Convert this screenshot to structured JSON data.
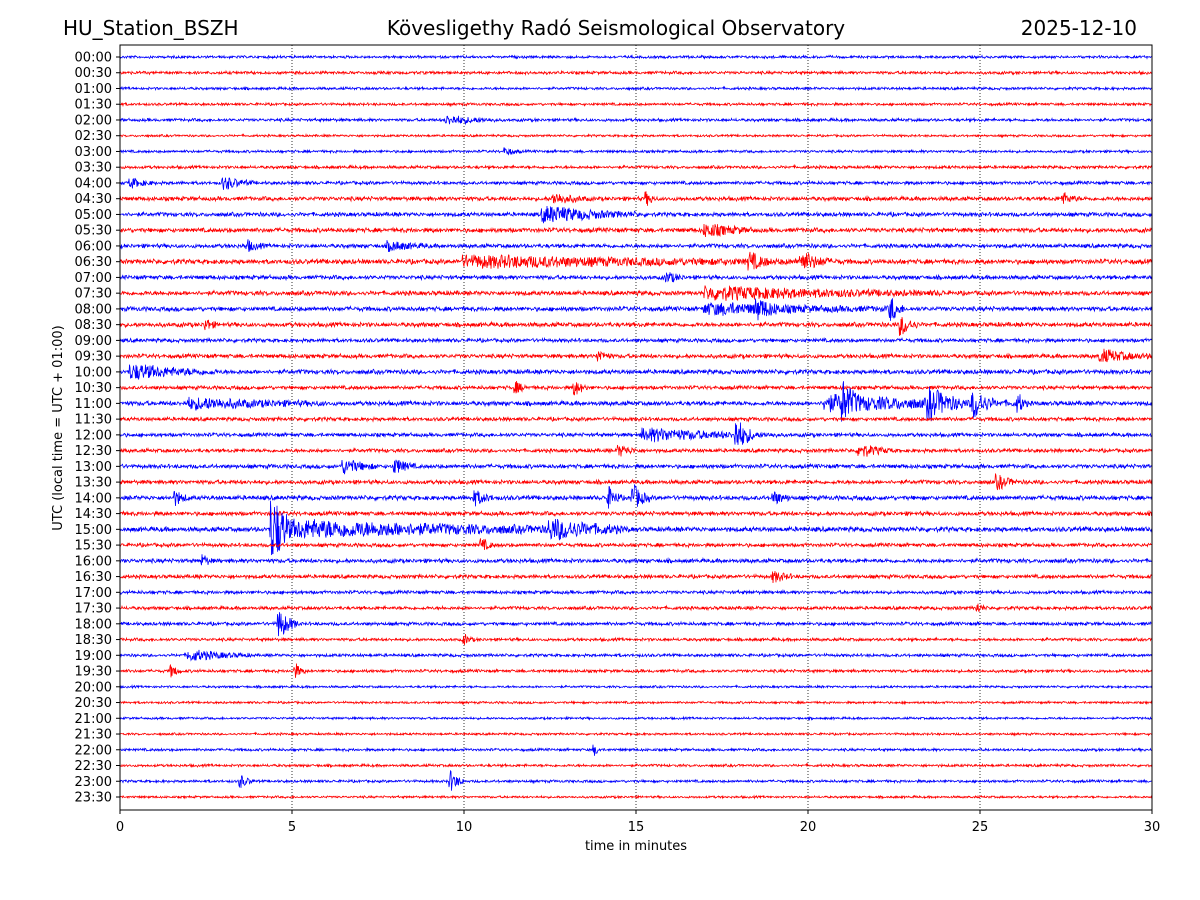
{
  "header": {
    "station": "HU_Station_BSZH",
    "observatory": "Kövesligethy Radó Seismological Observatory",
    "date": "2025-12-10"
  },
  "chart_data": {
    "type": "line",
    "subtype": "helicorder",
    "xlabel": "time in minutes",
    "ylabel": "UTC (local time = UTC + 01:00)",
    "xlim": [
      0,
      30
    ],
    "xticks": [
      "0",
      "5",
      "10",
      "15",
      "20",
      "25",
      "30"
    ],
    "grid": "vertical dotted at x ticks",
    "colors": [
      "#0000ff",
      "#ff0000"
    ],
    "rows": [
      "00:00",
      "00:30",
      "01:00",
      "01:30",
      "02:00",
      "02:30",
      "03:00",
      "03:30",
      "04:00",
      "04:30",
      "05:00",
      "05:30",
      "06:00",
      "06:30",
      "07:00",
      "07:30",
      "08:00",
      "08:30",
      "09:00",
      "09:30",
      "10:00",
      "10:30",
      "11:00",
      "11:30",
      "12:00",
      "12:30",
      "13:00",
      "13:30",
      "14:00",
      "14:30",
      "15:00",
      "15:30",
      "16:00",
      "16:30",
      "17:00",
      "17:30",
      "18:00",
      "18:30",
      "19:00",
      "19:30",
      "20:00",
      "20:30",
      "21:00",
      "21:30",
      "22:00",
      "22:30",
      "23:00",
      "23:30"
    ],
    "noise_level": [
      0.07,
      0.08,
      0.07,
      0.07,
      0.08,
      0.06,
      0.07,
      0.08,
      0.09,
      0.11,
      0.11,
      0.12,
      0.11,
      0.13,
      0.11,
      0.12,
      0.12,
      0.12,
      0.1,
      0.11,
      0.12,
      0.1,
      0.12,
      0.1,
      0.1,
      0.1,
      0.11,
      0.11,
      0.12,
      0.11,
      0.13,
      0.1,
      0.11,
      0.1,
      0.09,
      0.09,
      0.09,
      0.08,
      0.08,
      0.08,
      0.06,
      0.06,
      0.06,
      0.06,
      0.07,
      0.07,
      0.07,
      0.06
    ],
    "events": [
      {
        "row": "02:00",
        "t": 9.5,
        "amp": 0.25,
        "dur": 1.5
      },
      {
        "row": "03:00",
        "t": 11.2,
        "amp": 0.2,
        "dur": 0.5
      },
      {
        "row": "04:00",
        "t": 0.3,
        "amp": 0.25,
        "dur": 0.7
      },
      {
        "row": "04:00",
        "t": 3.0,
        "amp": 0.35,
        "dur": 0.9
      },
      {
        "row": "04:30",
        "t": 12.6,
        "amp": 0.3,
        "dur": 1.0
      },
      {
        "row": "04:30",
        "t": 15.3,
        "amp": 0.35,
        "dur": 0.3
      },
      {
        "row": "04:30",
        "t": 27.4,
        "amp": 0.3,
        "dur": 0.5
      },
      {
        "row": "05:00",
        "t": 12.3,
        "amp": 0.45,
        "dur": 2.8
      },
      {
        "row": "05:30",
        "t": 17.0,
        "amp": 0.35,
        "dur": 1.5
      },
      {
        "row": "06:00",
        "t": 3.7,
        "amp": 0.3,
        "dur": 0.5
      },
      {
        "row": "06:00",
        "t": 7.8,
        "amp": 0.25,
        "dur": 1.2
      },
      {
        "row": "06:30",
        "t": 10.0,
        "amp": 0.3,
        "dur": 11
      },
      {
        "row": "06:30",
        "t": 18.3,
        "amp": 0.45,
        "dur": 0.6
      },
      {
        "row": "06:30",
        "t": 19.8,
        "amp": 0.5,
        "dur": 0.8
      },
      {
        "row": "07:00",
        "t": 15.9,
        "amp": 0.3,
        "dur": 0.5
      },
      {
        "row": "07:30",
        "t": 17.0,
        "amp": 0.35,
        "dur": 7
      },
      {
        "row": "08:00",
        "t": 17.0,
        "amp": 0.3,
        "dur": 5.5
      },
      {
        "row": "08:00",
        "t": 18.5,
        "amp": 0.45,
        "dur": 0.7
      },
      {
        "row": "08:00",
        "t": 22.4,
        "amp": 0.7,
        "dur": 0.4
      },
      {
        "row": "08:30",
        "t": 2.5,
        "amp": 0.35,
        "dur": 0.3
      },
      {
        "row": "08:30",
        "t": 22.7,
        "amp": 0.6,
        "dur": 0.5
      },
      {
        "row": "09:30",
        "t": 13.9,
        "amp": 0.35,
        "dur": 0.4
      },
      {
        "row": "09:30",
        "t": 28.5,
        "amp": 0.35,
        "dur": 1.5
      },
      {
        "row": "10:00",
        "t": 0.3,
        "amp": 0.4,
        "dur": 2.5
      },
      {
        "row": "10:30",
        "t": 11.5,
        "amp": 0.3,
        "dur": 0.4
      },
      {
        "row": "10:30",
        "t": 13.2,
        "amp": 0.45,
        "dur": 0.4
      },
      {
        "row": "11:00",
        "t": 2.0,
        "amp": 0.3,
        "dur": 4
      },
      {
        "row": "11:00",
        "t": 20.5,
        "amp": 0.45,
        "dur": 5.8
      },
      {
        "row": "11:00",
        "t": 21.0,
        "amp": 0.9,
        "dur": 0.5
      },
      {
        "row": "11:00",
        "t": 23.5,
        "amp": 0.8,
        "dur": 1.0
      },
      {
        "row": "11:00",
        "t": 24.8,
        "amp": 0.8,
        "dur": 0.6
      },
      {
        "row": "11:00",
        "t": 26.1,
        "amp": 0.5,
        "dur": 0.3
      },
      {
        "row": "12:00",
        "t": 15.2,
        "amp": 0.35,
        "dur": 4
      },
      {
        "row": "12:00",
        "t": 17.9,
        "amp": 0.85,
        "dur": 0.6
      },
      {
        "row": "12:30",
        "t": 14.5,
        "amp": 0.3,
        "dur": 0.6
      },
      {
        "row": "12:30",
        "t": 21.5,
        "amp": 0.35,
        "dur": 1.0
      },
      {
        "row": "13:00",
        "t": 6.5,
        "amp": 0.4,
        "dur": 1.0
      },
      {
        "row": "13:00",
        "t": 8.0,
        "amp": 0.4,
        "dur": 0.6
      },
      {
        "row": "13:30",
        "t": 25.5,
        "amp": 0.4,
        "dur": 0.6
      },
      {
        "row": "14:00",
        "t": 1.6,
        "amp": 0.4,
        "dur": 0.4
      },
      {
        "row": "14:00",
        "t": 10.3,
        "amp": 0.4,
        "dur": 0.6
      },
      {
        "row": "14:00",
        "t": 14.2,
        "amp": 0.6,
        "dur": 0.4
      },
      {
        "row": "14:00",
        "t": 14.9,
        "amp": 0.75,
        "dur": 0.5
      },
      {
        "row": "14:00",
        "t": 19.0,
        "amp": 0.35,
        "dur": 0.5
      },
      {
        "row": "15:00",
        "t": 4.4,
        "amp": 2.0,
        "dur": 0.5
      },
      {
        "row": "15:00",
        "t": 4.6,
        "amp": 0.5,
        "dur": 10.2
      },
      {
        "row": "15:00",
        "t": 12.5,
        "amp": 0.5,
        "dur": 2.0
      },
      {
        "row": "15:30",
        "t": 10.5,
        "amp": 0.35,
        "dur": 0.4
      },
      {
        "row": "16:00",
        "t": 2.4,
        "amp": 0.35,
        "dur": 0.3
      },
      {
        "row": "16:30",
        "t": 19.0,
        "amp": 0.3,
        "dur": 0.6
      },
      {
        "row": "17:30",
        "t": 24.9,
        "amp": 0.3,
        "dur": 0.3
      },
      {
        "row": "18:00",
        "t": 4.6,
        "amp": 0.85,
        "dur": 0.6
      },
      {
        "row": "18:30",
        "t": 10.0,
        "amp": 0.3,
        "dur": 0.3
      },
      {
        "row": "19:00",
        "t": 2.0,
        "amp": 0.3,
        "dur": 1.8
      },
      {
        "row": "19:30",
        "t": 1.5,
        "amp": 0.35,
        "dur": 0.3
      },
      {
        "row": "19:30",
        "t": 5.1,
        "amp": 0.4,
        "dur": 0.3
      },
      {
        "row": "22:00",
        "t": 13.8,
        "amp": 0.3,
        "dur": 0.2
      },
      {
        "row": "23:00",
        "t": 3.5,
        "amp": 0.35,
        "dur": 0.4
      },
      {
        "row": "23:00",
        "t": 9.6,
        "amp": 0.6,
        "dur": 0.4
      }
    ]
  }
}
